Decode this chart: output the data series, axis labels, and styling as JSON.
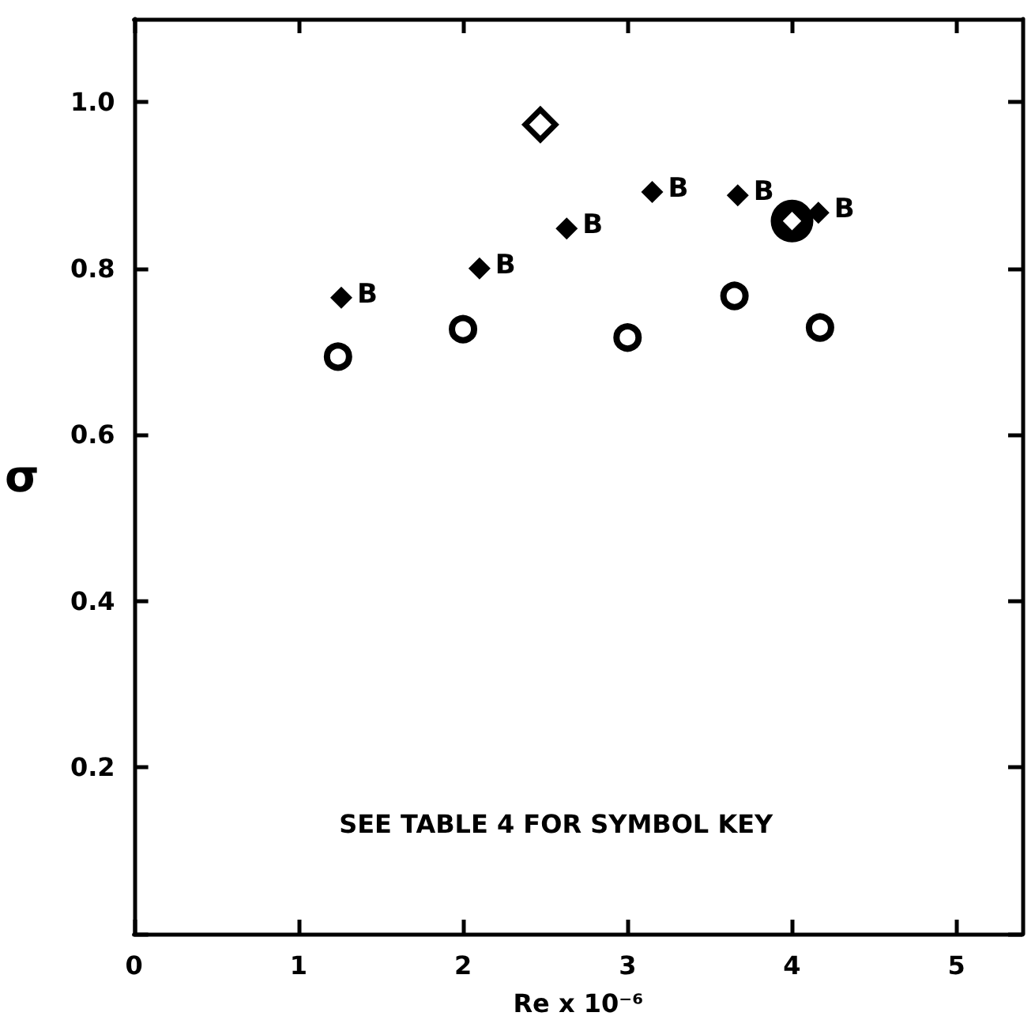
{
  "chart_data": {
    "type": "scatter",
    "xlabel": "Re x 10⁻⁶",
    "ylabel": "σ",
    "annotations": [
      "SEE TABLE 4 FOR SYMBOL KEY",
      {
        "text": "B",
        "x": 1.26,
        "y": 0.765
      },
      {
        "text": "B",
        "x": 2.1,
        "y": 0.8
      },
      {
        "text": "B",
        "x": 2.63,
        "y": 0.848
      },
      {
        "text": "B",
        "x": 3.15,
        "y": 0.892
      },
      {
        "text": "B",
        "x": 3.67,
        "y": 0.888
      },
      {
        "text": "B",
        "x": 4.16,
        "y": 0.867
      }
    ],
    "xlim": [
      0,
      5.4
    ],
    "ylim": [
      0,
      1.1
    ],
    "xticks": [
      0,
      1,
      2,
      3,
      4,
      5
    ],
    "yticks": [
      {
        "value": 0,
        "label": null
      },
      0.2,
      0.4,
      0.6,
      0.8,
      {
        "value": 1,
        "label": "1.0"
      }
    ],
    "series": [
      {
        "color": "#000000",
        "marker": "circle",
        "x": [
          1.24,
          2.0,
          3.0,
          3.65,
          4.17
        ],
        "values": [
          0.694,
          0.727,
          0.717,
          0.767,
          0.729
        ]
      },
      {
        "color": "#000000",
        "marker": "diamond",
        "x": [
          1.26,
          2.1,
          2.63,
          3.15,
          3.67,
          4.16
        ],
        "values": [
          0.765,
          0.8,
          0.848,
          0.892,
          0.888,
          0.867
        ]
      },
      {
        "color": "#000000",
        "marker": "diamond",
        "x": [
          2.47
        ],
        "values": [
          0.973
        ]
      },
      {
        "color": "#000000",
        "marker": "circle",
        "x": [
          4.0
        ],
        "values": [
          0.857
        ]
      }
    ]
  }
}
